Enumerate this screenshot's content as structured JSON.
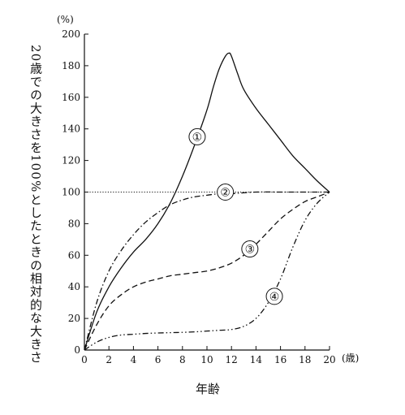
{
  "chart_data": {
    "type": "line",
    "ylabel": "20歳での大きさを100%としたときの相対的な大きさ",
    "xlabel": "年齢",
    "y_unit": "(%)",
    "x_unit": "(歳)",
    "xlim": [
      0,
      20
    ],
    "ylim": [
      0,
      200
    ],
    "x_ticks": [
      0,
      2,
      4,
      6,
      8,
      10,
      12,
      14,
      16,
      18,
      20
    ],
    "y_ticks": [
      0,
      20,
      40,
      60,
      80,
      100,
      120,
      140,
      160,
      180,
      200
    ],
    "reference_line": {
      "y": 100,
      "style": "dotted"
    },
    "grid": false,
    "series": [
      {
        "name": "①",
        "style": "solid",
        "x": [
          0,
          1,
          2,
          3,
          4,
          5,
          6,
          7,
          8,
          9,
          10,
          10.5,
          11,
          11.5,
          11.8,
          12,
          12.5,
          13,
          14,
          15,
          16,
          17,
          18,
          19,
          20
        ],
        "y": [
          0,
          24,
          40,
          52,
          62,
          70,
          80,
          93,
          110,
          130,
          152,
          166,
          178,
          186,
          188,
          186,
          175,
          165,
          153,
          143,
          133,
          123,
          115,
          107,
          100
        ],
        "marker_position": {
          "x": 9.2,
          "y": 135
        }
      },
      {
        "name": "②",
        "style": "dashdot",
        "x": [
          0,
          1,
          2,
          3,
          4,
          5,
          6,
          7,
          8,
          9,
          10,
          11,
          12,
          14,
          16,
          18,
          20
        ],
        "y": [
          0,
          30,
          50,
          63,
          73,
          81,
          87,
          92,
          95,
          97,
          98,
          99,
          99,
          100,
          100,
          100,
          100
        ],
        "marker_position": {
          "x": 11.5,
          "y": 100
        }
      },
      {
        "name": "③",
        "style": "dashed",
        "x": [
          0,
          1,
          2,
          3,
          4,
          5,
          6,
          7,
          8,
          9,
          10,
          11,
          12,
          13,
          14,
          15,
          16,
          17,
          18,
          19,
          20
        ],
        "y": [
          0,
          16,
          28,
          35,
          40,
          43,
          45,
          47,
          48,
          49,
          50,
          52,
          55,
          60,
          67,
          75,
          83,
          89,
          94,
          97,
          100
        ],
        "marker_position": {
          "x": 13.5,
          "y": 64
        }
      },
      {
        "name": "④",
        "style": "dashdotdot",
        "x": [
          0,
          1,
          2,
          3,
          4,
          5,
          6,
          7,
          8,
          9,
          10,
          11,
          12,
          13,
          14,
          15,
          16,
          17,
          18,
          19,
          20
        ],
        "y": [
          0,
          5,
          8,
          9.5,
          10,
          10.5,
          10.8,
          11,
          11.2,
          11.5,
          12,
          12.5,
          13,
          15,
          20,
          30,
          45,
          65,
          82,
          93,
          100
        ],
        "marker_position": {
          "x": 15.5,
          "y": 34
        }
      }
    ]
  }
}
